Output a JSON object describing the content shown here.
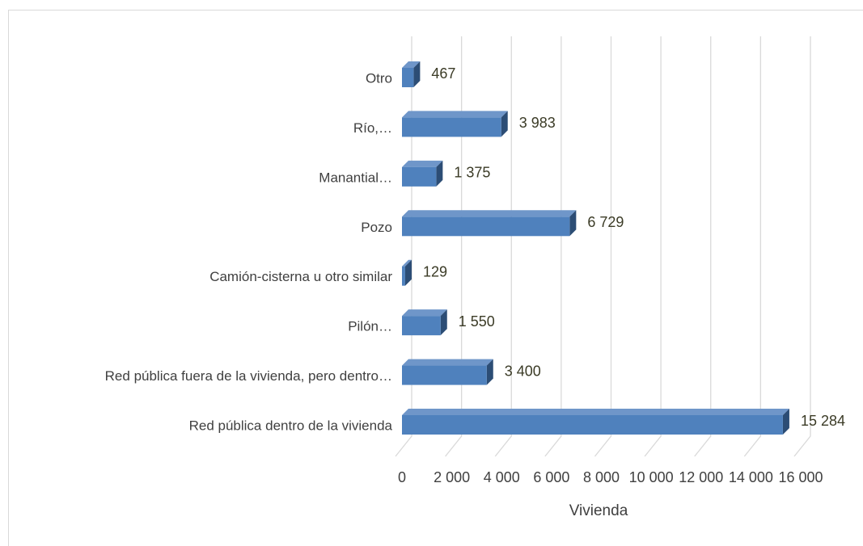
{
  "chart_data": {
    "type": "bar",
    "orientation": "horizontal",
    "categories": [
      "Otro",
      "Río,…",
      "Manantial…",
      "Pozo",
      "Camión-cisterna u otro similar",
      "Pilón…",
      "Red pública fuera de la vivienda, pero dentro…",
      "Red pública dentro de la vivienda"
    ],
    "values": [
      467,
      3983,
      1375,
      6729,
      129,
      1550,
      3400,
      15284
    ],
    "value_labels": [
      "467",
      "3 983",
      "1 375",
      "6 729",
      "129",
      "1 550",
      "3 400",
      "15 284"
    ],
    "color": "#4f81bd",
    "xlim": [
      0,
      16000
    ],
    "xticks": [
      0,
      {
        "value": 2000,
        "label": "2 000"
      },
      {
        "value": 4000,
        "label": "4 000"
      },
      {
        "value": 6000,
        "label": "6 000"
      },
      {
        "value": 8000,
        "label": "8 000"
      },
      {
        "value": 10000,
        "label": "10 000"
      },
      {
        "value": 12000,
        "label": "12 000"
      },
      {
        "value": 14000,
        "label": "14 000"
      },
      {
        "value": 16000,
        "label": "16 000"
      }
    ],
    "xlabel": "Vivienda",
    "grid": true
  }
}
